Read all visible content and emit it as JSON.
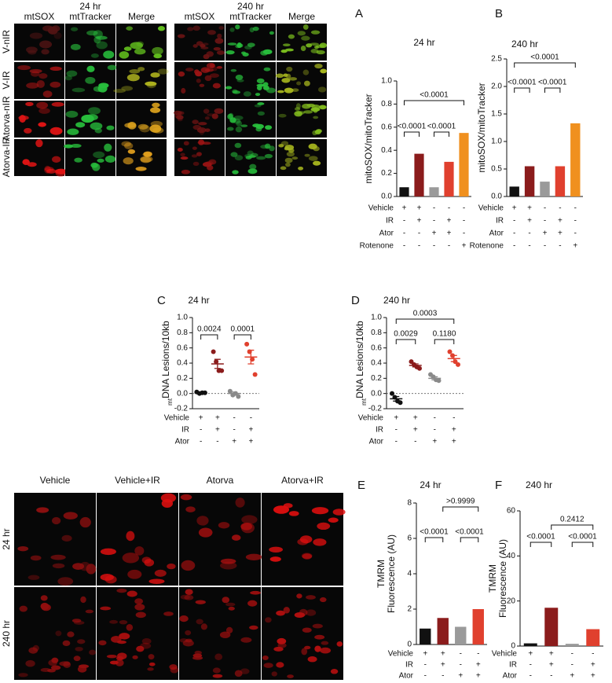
{
  "top_micrographs": {
    "rows": [
      "V-nIR",
      "V-IR",
      "Atorva-nIR",
      "Atorva-IR"
    ],
    "blocks": [
      {
        "title": "24 hr",
        "columns": [
          "mtSOX",
          "mtTracker",
          "Merge"
        ]
      },
      {
        "title": "240 hr",
        "columns": [
          "mtSOX",
          "mtTracker",
          "Merge"
        ]
      }
    ]
  },
  "bottom_micrographs": {
    "columns": [
      "Vehicle",
      "Vehicle+IR",
      "Atorva",
      "Atorva+IR"
    ],
    "rows": [
      "24 hr",
      "240 hr"
    ]
  },
  "chart_data": [
    {
      "type": "bar",
      "panel": "A",
      "title": "24 hr",
      "ylabel": "mitoSOX/mitoTracker",
      "ylim": [
        0,
        1.0
      ],
      "yticks": [
        {
          "value": 0,
          "label": "0.0"
        },
        0.2,
        0.4,
        0.6,
        0.8,
        {
          "value": 1,
          "label": "1.0"
        }
      ],
      "values": [
        0.08,
        0.37,
        0.08,
        0.3,
        0.55
      ],
      "colors": [
        "#111111",
        "#8b1c1c",
        "#9a9a9a",
        "#e0402e",
        "#f0901e"
      ],
      "conditions": [
        {
          "name": "Vehicle",
          "signs": [
            "+",
            "+",
            "-",
            "-",
            "-"
          ]
        },
        {
          "name": "IR",
          "signs": [
            "-",
            "+",
            "-",
            "+",
            "-"
          ]
        },
        {
          "name": "Ator",
          "signs": [
            "-",
            "-",
            "+",
            "+",
            "-"
          ]
        },
        {
          "name": "Rotenone",
          "signs": [
            "-",
            "-",
            "-",
            "-",
            "+"
          ]
        }
      ],
      "comparisons": [
        {
          "groups": [
            0,
            1
          ],
          "label": "<0.0001"
        },
        {
          "groups": [
            2,
            3
          ],
          "label": "<0.0001"
        },
        {
          "groups": [
            0,
            4
          ],
          "label": "<0.0001"
        }
      ]
    },
    {
      "type": "bar",
      "panel": "B",
      "title": "240 hr",
      "ylabel": "mitoSOX/mitoTracker",
      "ylim": [
        0,
        2.5
      ],
      "yticks": [
        {
          "value": 0,
          "label": "0.0"
        },
        0.5,
        {
          "value": 1,
          "label": "1.0"
        },
        1.5,
        {
          "value": 2,
          "label": "2.0"
        },
        2.5
      ],
      "values": [
        0.18,
        0.55,
        0.27,
        0.55,
        1.33
      ],
      "colors": [
        "#111111",
        "#8b1c1c",
        "#9a9a9a",
        "#e0402e",
        "#f0901e"
      ],
      "conditions": [
        {
          "name": "Vehicle",
          "signs": [
            "+",
            "+",
            "-",
            "-",
            "-"
          ]
        },
        {
          "name": "IR",
          "signs": [
            "-",
            "+",
            "-",
            "+",
            "-"
          ]
        },
        {
          "name": "Ator",
          "signs": [
            "-",
            "-",
            "+",
            "+",
            "-"
          ]
        },
        {
          "name": "Rotenone",
          "signs": [
            "-",
            "-",
            "-",
            "-",
            "+"
          ]
        }
      ],
      "comparisons": [
        {
          "groups": [
            0,
            1
          ],
          "label": "<0.0001"
        },
        {
          "groups": [
            2,
            3
          ],
          "label": "<0.0001"
        },
        {
          "groups": [
            0,
            4
          ],
          "label": "<0.0001"
        }
      ]
    },
    {
      "type": "dot",
      "panel": "C",
      "title": "24 hr",
      "ylabel_sub": "mt",
      "ylabel": "DNA Lesions/10kb",
      "zero_line": true,
      "ylim": [
        -0.2,
        1.0
      ],
      "yticks": [
        -0.2,
        {
          "value": 0,
          "label": "0.0"
        },
        0.2,
        0.4,
        0.6,
        0.8,
        {
          "value": 1,
          "label": "1.0"
        }
      ],
      "points": [
        [
          0.02,
          0.0,
          0.01,
          0.01
        ],
        [
          0.55,
          0.42,
          0.3,
          0.3
        ],
        [
          0.03,
          -0.02,
          0.0,
          -0.04
        ],
        [
          0.65,
          0.55,
          0.45,
          0.25
        ]
      ],
      "means": [
        0.01,
        0.39,
        0.0,
        0.48
      ],
      "errors": [
        0.01,
        0.06,
        0.02,
        0.09
      ],
      "colors": [
        "#111111",
        "#8b1c1c",
        "#8a8a8a",
        "#e0402e"
      ],
      "conditions": [
        {
          "name": "Vehicle",
          "signs": [
            "+",
            "+",
            "-",
            "-"
          ]
        },
        {
          "name": "IR",
          "signs": [
            "-",
            "+",
            "-",
            "+"
          ]
        },
        {
          "name": "Ator",
          "signs": [
            "-",
            "-",
            "+",
            "+"
          ]
        }
      ],
      "comparisons": [
        {
          "groups": [
            0,
            1
          ],
          "label": "0.0024"
        },
        {
          "groups": [
            2,
            3
          ],
          "label": "0.0001"
        }
      ]
    },
    {
      "type": "dot",
      "panel": "D",
      "title": "240 hr",
      "ylabel_sub": "mt",
      "ylabel": "DNA Lesions/10kb",
      "zero_line": true,
      "ylim": [
        -0.2,
        1.0
      ],
      "yticks": [
        -0.2,
        {
          "value": 0,
          "label": "0.0"
        },
        0.2,
        0.4,
        0.6,
        0.8,
        {
          "value": 1,
          "label": "1.0"
        }
      ],
      "points": [
        [
          0.0,
          -0.05,
          -0.1,
          -0.12
        ],
        [
          0.42,
          0.38,
          0.35,
          0.33
        ],
        [
          0.25,
          0.22,
          0.18,
          0.17
        ],
        [
          0.55,
          0.5,
          0.42,
          0.38
        ]
      ],
      "means": [
        -0.07,
        0.37,
        0.2,
        0.46
      ],
      "errors": [
        0.03,
        0.02,
        0.02,
        0.04
      ],
      "colors": [
        "#111111",
        "#8b1c1c",
        "#8a8a8a",
        "#e0402e"
      ],
      "conditions": [
        {
          "name": "Vehicle",
          "signs": [
            "+",
            "+",
            "-",
            "-"
          ]
        },
        {
          "name": "IR",
          "signs": [
            "-",
            "+",
            "-",
            "+"
          ]
        },
        {
          "name": "Ator",
          "signs": [
            "-",
            "-",
            "+",
            "+"
          ]
        }
      ],
      "comparisons": [
        {
          "groups": [
            0,
            1
          ],
          "label": "0.0029"
        },
        {
          "groups": [
            2,
            3
          ],
          "label": "0.1180"
        },
        {
          "groups": [
            0,
            3
          ],
          "label": "0.0003"
        }
      ]
    },
    {
      "type": "bar",
      "panel": "E",
      "title": "24 hr",
      "ylabel": [
        "TMRM",
        "Fluorescence (AU)"
      ],
      "ylim": [
        0,
        8
      ],
      "yticks": [
        0,
        2,
        4,
        6,
        8
      ],
      "values": [
        0.9,
        1.5,
        1.0,
        2.0
      ],
      "colors": [
        "#111111",
        "#8b1c1c",
        "#9a9a9a",
        "#e0402e"
      ],
      "conditions": [
        {
          "name": "Vehicle",
          "signs": [
            "+",
            "+",
            "-",
            "-"
          ]
        },
        {
          "name": "IR",
          "signs": [
            "-",
            "+",
            "-",
            "+"
          ]
        },
        {
          "name": "Ator",
          "signs": [
            "-",
            "-",
            "+",
            "+"
          ]
        }
      ],
      "comparisons": [
        {
          "groups": [
            0,
            1
          ],
          "label": "<0.0001"
        },
        {
          "groups": [
            2,
            3
          ],
          "label": "<0.0001"
        },
        {
          "groups": [
            1,
            3
          ],
          "label": ">0.9999"
        }
      ]
    },
    {
      "type": "bar",
      "panel": "F",
      "title": "240 hr",
      "ylabel": [
        "TMRM",
        "Fluorescence (AU)"
      ],
      "ylim": [
        0,
        60
      ],
      "yticks": [
        0,
        20,
        40,
        60
      ],
      "values": [
        1.2,
        17,
        1.0,
        7.5
      ],
      "colors": [
        "#111111",
        "#8b1c1c",
        "#9a9a9a",
        "#e0402e"
      ],
      "conditions": [
        {
          "name": "Vehicle",
          "signs": [
            "+",
            "+",
            "-",
            "-"
          ]
        },
        {
          "name": "IR",
          "signs": [
            "-",
            "+",
            "-",
            "+"
          ]
        },
        {
          "name": "Ator",
          "signs": [
            "-",
            "-",
            "+",
            "+"
          ]
        }
      ],
      "comparisons": [
        {
          "groups": [
            0,
            1
          ],
          "label": "<0.0001"
        },
        {
          "groups": [
            2,
            3
          ],
          "label": "<0.0001"
        },
        {
          "groups": [
            1,
            3
          ],
          "label": "0.2412"
        }
      ]
    }
  ]
}
